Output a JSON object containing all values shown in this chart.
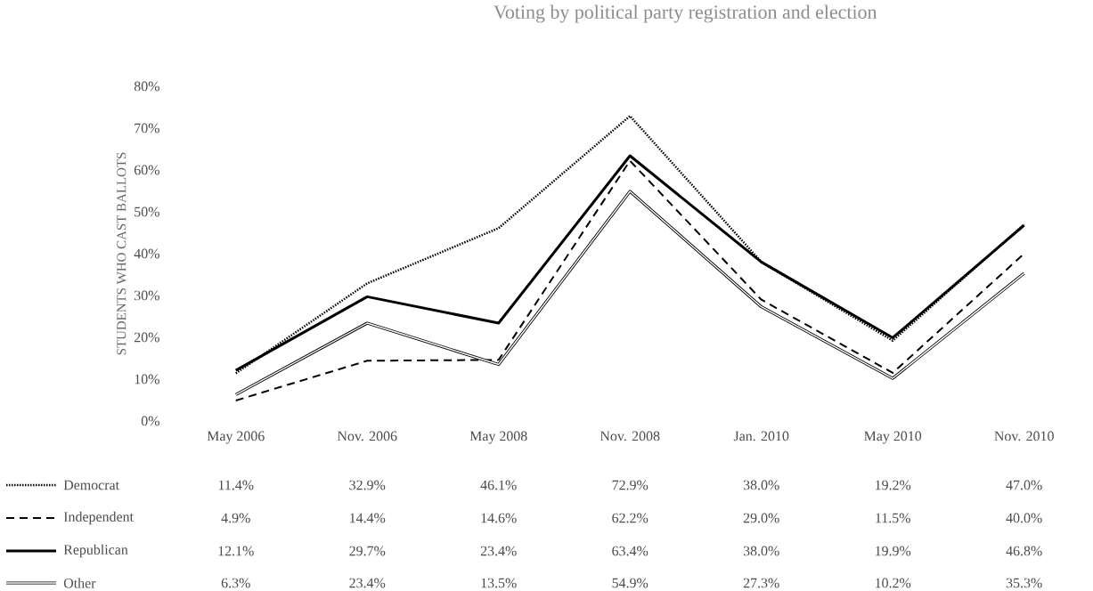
{
  "chart_data": {
    "type": "line",
    "title": "Voting by political party registration and election",
    "ylabel": "STUDENTS WHO CAST BALLOTS",
    "categories": [
      "May 2006",
      "Nov. 2006",
      "May 2008",
      "Nov. 2008",
      "Jan. 2010",
      "May 2010",
      "Nov. 2010"
    ],
    "series": [
      {
        "name": "Democrat",
        "color": "#000000",
        "line_style": "dotted",
        "values": [
          11.4,
          32.9,
          46.1,
          72.9,
          38.0,
          19.2,
          47.0
        ],
        "value_labels": [
          "11.4%",
          "32.9%",
          "46.1%",
          "72.9%",
          "38.0%",
          "19.2%",
          "47.0%"
        ]
      },
      {
        "name": "Independent",
        "color": "#000000",
        "line_style": "dashed",
        "values": [
          4.9,
          14.4,
          14.6,
          62.2,
          29.0,
          11.5,
          40.0
        ],
        "value_labels": [
          "4.9%",
          "14.4%",
          "14.6%",
          "62.2%",
          "29.0%",
          "11.5%",
          "40.0%"
        ]
      },
      {
        "name": "Republican",
        "color": "#000000",
        "line_style": "solid",
        "values": [
          12.1,
          29.7,
          23.4,
          63.4,
          38.0,
          19.9,
          46.8
        ],
        "value_labels": [
          "12.1%",
          "29.7%",
          "23.4%",
          "63.4%",
          "38.0%",
          "19.9%",
          "46.8%"
        ]
      },
      {
        "name": "Other",
        "color": "#000000",
        "values": [
          6.3,
          23.4,
          13.5,
          54.9,
          27.3,
          10.2,
          35.3
        ],
        "value_labels": [
          "6.3%",
          "23.4%",
          "13.5%",
          "54.9%",
          "27.3%",
          "10.2%",
          "35.3%"
        ]
      }
    ],
    "ylim": [
      0,
      80
    ],
    "yticks": [
      {
        "value": 0,
        "label": "0%"
      },
      {
        "value": 10,
        "label": "10%"
      },
      {
        "value": 20,
        "label": "20%"
      },
      {
        "value": 30,
        "label": "30%"
      },
      {
        "value": 40,
        "label": "40%"
      },
      {
        "value": 50,
        "label": "50%"
      },
      {
        "value": 60,
        "label": "60%"
      },
      {
        "value": 70,
        "label": "70%"
      },
      {
        "value": 80,
        "label": "80%"
      }
    ],
    "marker": "none",
    "legend": "bottom left"
  }
}
